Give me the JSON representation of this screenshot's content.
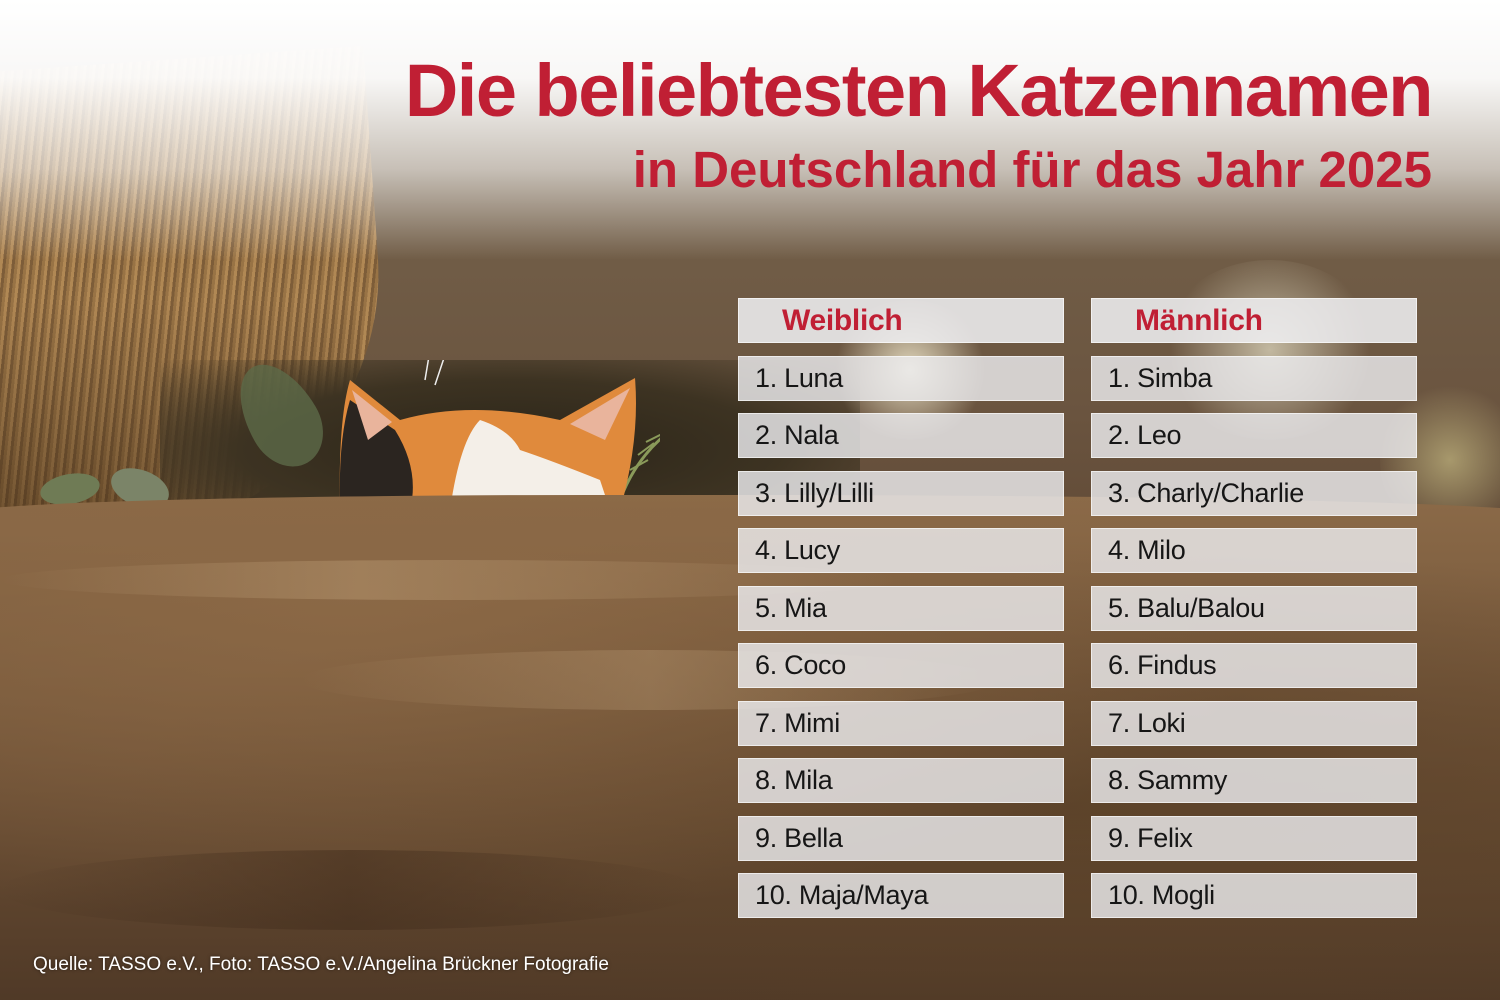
{
  "title": "Die beliebtesten Katzennamen",
  "subtitle": "in Deutschland für das Jahr 2025",
  "columns": {
    "female": {
      "header": "Weiblich",
      "names": [
        "1. Luna",
        "2. Nala",
        "3. Lilly/Lilli",
        "4. Lucy",
        "5. Mia",
        "6. Coco",
        "7. Mimi",
        "8. Mila",
        "9. Bella",
        "10. Maja/Maya"
      ]
    },
    "male": {
      "header": "Männlich",
      "names": [
        "1. Simba",
        "2. Leo",
        "3. Charly/Charlie",
        "4. Milo",
        "5. Balu/Balou",
        "6. Findus",
        "7. Loki",
        "8. Sammy",
        "9. Felix",
        "10. Mogli"
      ]
    }
  },
  "source": "Quelle: TASSO e.V., Foto: TASSO e.V./Angelina Brückner Fotografie",
  "colors": {
    "accent": "#c01f34",
    "cell_background": "#ebebee",
    "text": "#161616"
  }
}
